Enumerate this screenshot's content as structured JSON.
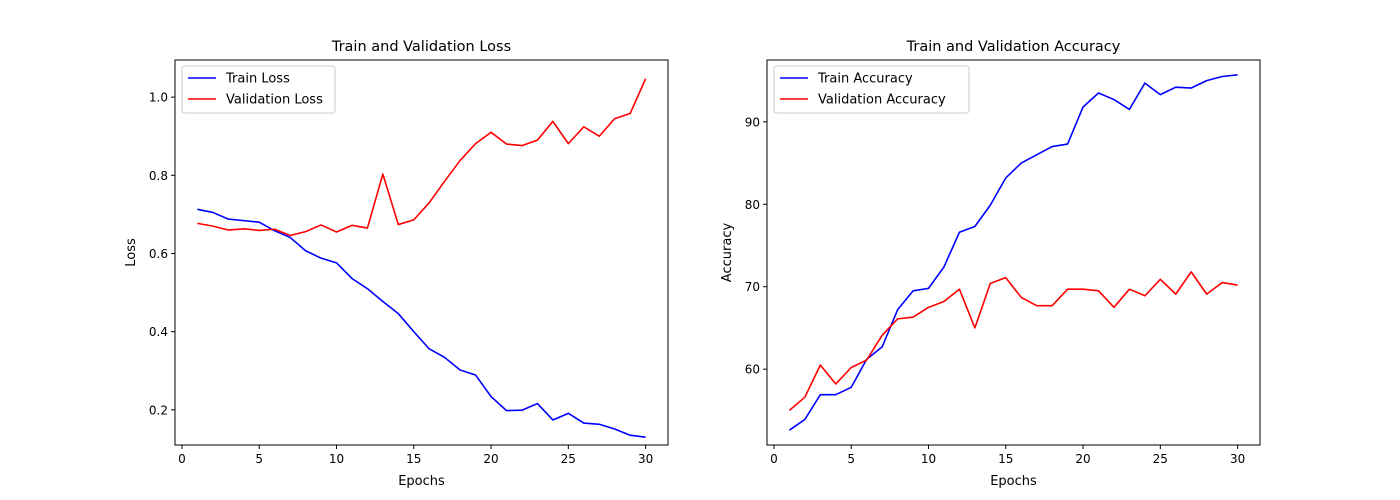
{
  "chart_data": [
    {
      "type": "line",
      "title": "Train and Validation Loss",
      "xlabel": "Epochs",
      "ylabel": "Loss",
      "xlim": [
        -0.45,
        31.45
      ],
      "ylim": [
        0.11,
        1.095
      ],
      "xticks": [
        0,
        5,
        10,
        15,
        20,
        25,
        30
      ],
      "yticks": [
        0.2,
        0.4,
        0.6,
        0.8,
        1.0
      ],
      "ytick_labels": [
        "0.2",
        "0.4",
        "0.6",
        "0.8",
        "1.0"
      ],
      "legend_position": "top-left",
      "grid": false,
      "x": [
        1,
        2,
        3,
        4,
        5,
        6,
        7,
        8,
        9,
        10,
        11,
        12,
        13,
        14,
        15,
        16,
        17,
        18,
        19,
        20,
        21,
        22,
        23,
        24,
        25,
        26,
        27,
        28,
        29,
        30
      ],
      "series": [
        {
          "name": "Train Loss",
          "color": "#0000ff",
          "values": [
            0.713,
            0.705,
            0.688,
            0.684,
            0.68,
            0.658,
            0.641,
            0.607,
            0.588,
            0.576,
            0.536,
            0.51,
            0.477,
            0.446,
            0.4,
            0.356,
            0.334,
            0.302,
            0.289,
            0.234,
            0.198,
            0.199,
            0.216,
            0.174,
            0.191,
            0.166,
            0.163,
            0.151,
            0.135,
            0.13
          ]
        },
        {
          "name": "Validation Loss",
          "color": "#ff0000",
          "values": [
            0.677,
            0.67,
            0.66,
            0.663,
            0.659,
            0.662,
            0.646,
            0.656,
            0.673,
            0.655,
            0.672,
            0.665,
            0.803,
            0.674,
            0.686,
            0.73,
            0.785,
            0.838,
            0.881,
            0.91,
            0.88,
            0.876,
            0.89,
            0.938,
            0.881,
            0.924,
            0.9,
            0.945,
            0.958,
            1.047
          ]
        }
      ]
    },
    {
      "type": "line",
      "title": "Train and Validation Accuracy",
      "xlabel": "Epochs",
      "ylabel": "Accuracy",
      "xlim": [
        -0.45,
        31.45
      ],
      "ylim": [
        50.8,
        97.5
      ],
      "xticks": [
        0,
        5,
        10,
        15,
        20,
        25,
        30
      ],
      "yticks": [
        60,
        70,
        80,
        90
      ],
      "ytick_labels": [
        "60",
        "70",
        "80",
        "90"
      ],
      "legend_position": "top-left",
      "grid": false,
      "x": [
        1,
        2,
        3,
        4,
        5,
        6,
        7,
        8,
        9,
        10,
        11,
        12,
        13,
        14,
        15,
        16,
        17,
        18,
        19,
        20,
        21,
        22,
        23,
        24,
        25,
        26,
        27,
        28,
        29,
        30
      ],
      "series": [
        {
          "name": "Train Accuracy",
          "color": "#0000ff",
          "values": [
            52.6,
            53.9,
            56.9,
            56.9,
            57.8,
            61.2,
            62.7,
            67.2,
            69.5,
            69.8,
            72.4,
            76.6,
            77.3,
            79.9,
            83.2,
            85.0,
            86.0,
            87.0,
            87.3,
            91.8,
            93.5,
            92.7,
            91.5,
            94.7,
            93.3,
            94.2,
            94.1,
            95.0,
            95.5,
            95.7
          ]
        },
        {
          "name": "Validation Accuracy",
          "color": "#ff0000",
          "values": [
            55.0,
            56.6,
            60.5,
            58.2,
            60.2,
            61.1,
            64.1,
            66.1,
            66.3,
            67.5,
            68.2,
            69.7,
            65.0,
            70.4,
            71.1,
            68.7,
            67.7,
            67.7,
            69.7,
            69.7,
            69.5,
            67.5,
            69.7,
            68.9,
            70.9,
            69.1,
            71.8,
            69.1,
            70.5,
            70.2
          ]
        }
      ]
    }
  ]
}
